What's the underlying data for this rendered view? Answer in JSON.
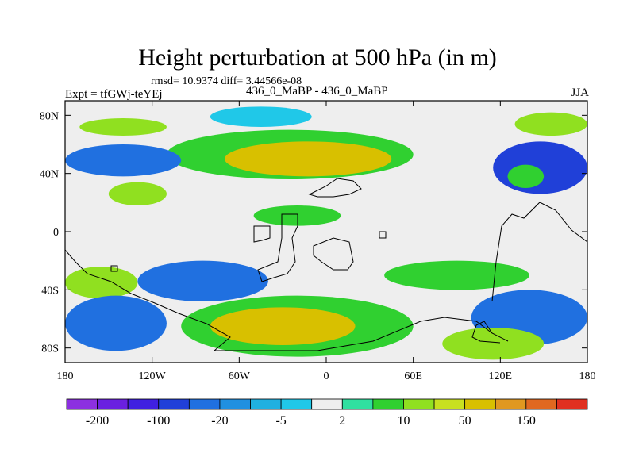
{
  "chart_data": {
    "type": "heatmap",
    "title": "Height perturbation at 500 hPa (in m)",
    "subtitle": "rmsd= 10.9374 diff= 3.44566e-08",
    "left_label": "Expt = tfGWj-teYEj",
    "center_label": "436_0_MaBP - 436_0_MaBP",
    "right_label": "JJA",
    "x_ticks": [
      {
        "value": -180,
        "label": "180"
      },
      {
        "value": -120,
        "label": "120W"
      },
      {
        "value": -60,
        "label": "60W"
      },
      {
        "value": 0,
        "label": "0"
      },
      {
        "value": 60,
        "label": "60E"
      },
      {
        "value": 120,
        "label": "120E"
      },
      {
        "value": 180,
        "label": "180"
      }
    ],
    "y_ticks": [
      {
        "value": 80,
        "label": "80N"
      },
      {
        "value": 40,
        "label": "40N"
      },
      {
        "value": 0,
        "label": "0"
      },
      {
        "value": -40,
        "label": "40S"
      },
      {
        "value": -80,
        "label": "80S"
      }
    ],
    "xlim": [
      -180,
      180
    ],
    "ylim": [
      -90,
      90
    ],
    "colorbar": {
      "colors": [
        "#8c30e0",
        "#6a20e0",
        "#4020e0",
        "#2040d8",
        "#2070e0",
        "#2090e0",
        "#20b0e0",
        "#20c8e8",
        "#eeeeee",
        "#30e0a0",
        "#30d030",
        "#90e020",
        "#c8e020",
        "#d8c000",
        "#e09820",
        "#e06820",
        "#e03020"
      ],
      "tick_labels": [
        "-200",
        "-100",
        "-20",
        "-5",
        "2",
        "10",
        "50",
        "150"
      ]
    },
    "regions": [
      {
        "lon": [
          -170,
          -110
        ],
        "lat": [
          66,
          78
        ],
        "value": 8,
        "color": "#90e020"
      },
      {
        "lon": [
          -80,
          -10
        ],
        "lat": [
          72,
          86
        ],
        "value": -2,
        "color": "#20c8e8"
      },
      {
        "lon": [
          -110,
          60
        ],
        "lat": [
          36,
          70
        ],
        "value": 10,
        "color": "#30d030"
      },
      {
        "lon": [
          -70,
          45
        ],
        "lat": [
          38,
          62
        ],
        "value": 45,
        "color": "#d8c000"
      },
      {
        "lon": [
          -180,
          -100
        ],
        "lat": [
          38,
          60
        ],
        "value": -20,
        "color": "#2070e0"
      },
      {
        "lon": [
          -150,
          -110
        ],
        "lat": [
          18,
          34
        ],
        "value": 15,
        "color": "#90e020"
      },
      {
        "lon": [
          -50,
          10
        ],
        "lat": [
          4,
          18
        ],
        "value": 6,
        "color": "#30d030"
      },
      {
        "lon": [
          115,
          180
        ],
        "lat": [
          26,
          62
        ],
        "value": -25,
        "color": "#2040d8"
      },
      {
        "lon": [
          125,
          150
        ],
        "lat": [
          30,
          46
        ],
        "value": 12,
        "color": "#30d030"
      },
      {
        "lon": [
          130,
          180
        ],
        "lat": [
          66,
          82
        ],
        "value": 15,
        "color": "#90e020"
      },
      {
        "lon": [
          -180,
          -130
        ],
        "lat": [
          -46,
          -24
        ],
        "value": 15,
        "color": "#90e020"
      },
      {
        "lon": [
          -130,
          -40
        ],
        "lat": [
          -48,
          -20
        ],
        "value": -20,
        "color": "#2070e0"
      },
      {
        "lon": [
          -100,
          60
        ],
        "lat": [
          -86,
          -44
        ],
        "value": 12,
        "color": "#30d030"
      },
      {
        "lon": [
          -80,
          20
        ],
        "lat": [
          -78,
          -52
        ],
        "value": 45,
        "color": "#d8c000"
      },
      {
        "lon": [
          -180,
          -110
        ],
        "lat": [
          -82,
          -44
        ],
        "value": -20,
        "color": "#2070e0"
      },
      {
        "lon": [
          100,
          180
        ],
        "lat": [
          -78,
          -40
        ],
        "value": -20,
        "color": "#2070e0"
      },
      {
        "lon": [
          80,
          150
        ],
        "lat": [
          -88,
          -66
        ],
        "value": 15,
        "color": "#90e020"
      },
      {
        "lon": [
          40,
          140
        ],
        "lat": [
          -40,
          -20
        ],
        "value": 8,
        "color": "#30d030"
      }
    ]
  }
}
